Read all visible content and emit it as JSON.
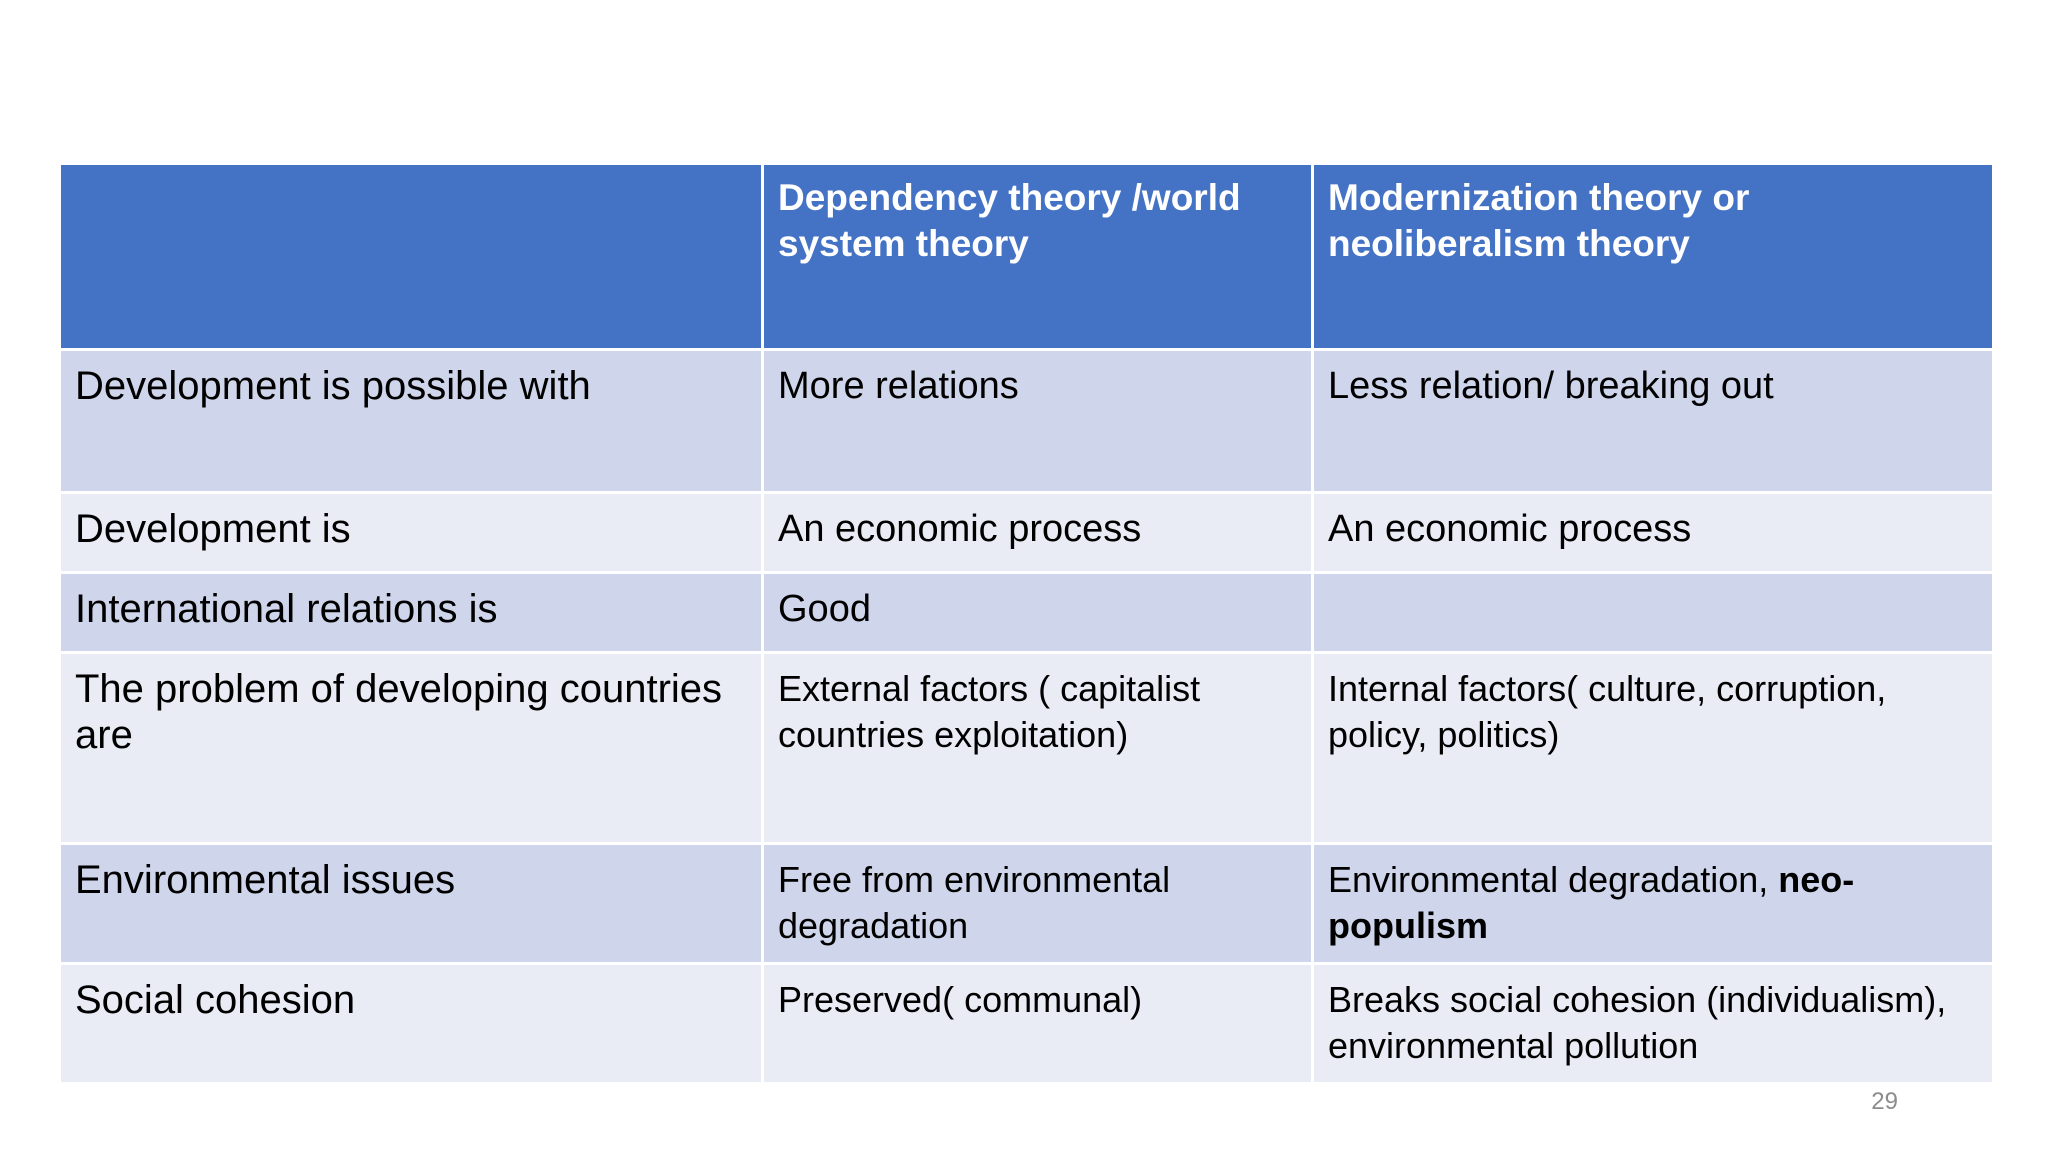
{
  "table": {
    "header": {
      "col1": "",
      "col2": "Dependency theory  /world system theory",
      "col3": "Modernization theory or neoliberalism theory"
    },
    "rows": [
      {
        "label": "Development is possible with",
        "dependency": "More relations",
        "modernization": "Less relation/ breaking out"
      },
      {
        "label": "Development is",
        "dependency": "An economic process",
        "modernization": "An economic process"
      },
      {
        "label": "International relations  is",
        "dependency": "Good",
        "modernization": ""
      },
      {
        "label": "The problem of developing countries are",
        "dependency": "External factors ( capitalist countries exploitation)",
        "modernization": "Internal factors( culture, corruption, policy, politics)"
      },
      {
        "label": "Environmental issues",
        "dependency": "Free from environmental degradation",
        "modernization": "Environmental degradation, ",
        "modernization_bold": "neo-populism"
      },
      {
        "label": "Social cohesion",
        "dependency": "Preserved( communal)",
        "modernization": "Breaks  social cohesion (individualism), environmental pollution"
      }
    ]
  },
  "page_number": "29",
  "colors": {
    "header_bg": "#4472c4",
    "row_odd_bg": "#cfd5ea",
    "row_even_bg": "#e9ebf5"
  }
}
